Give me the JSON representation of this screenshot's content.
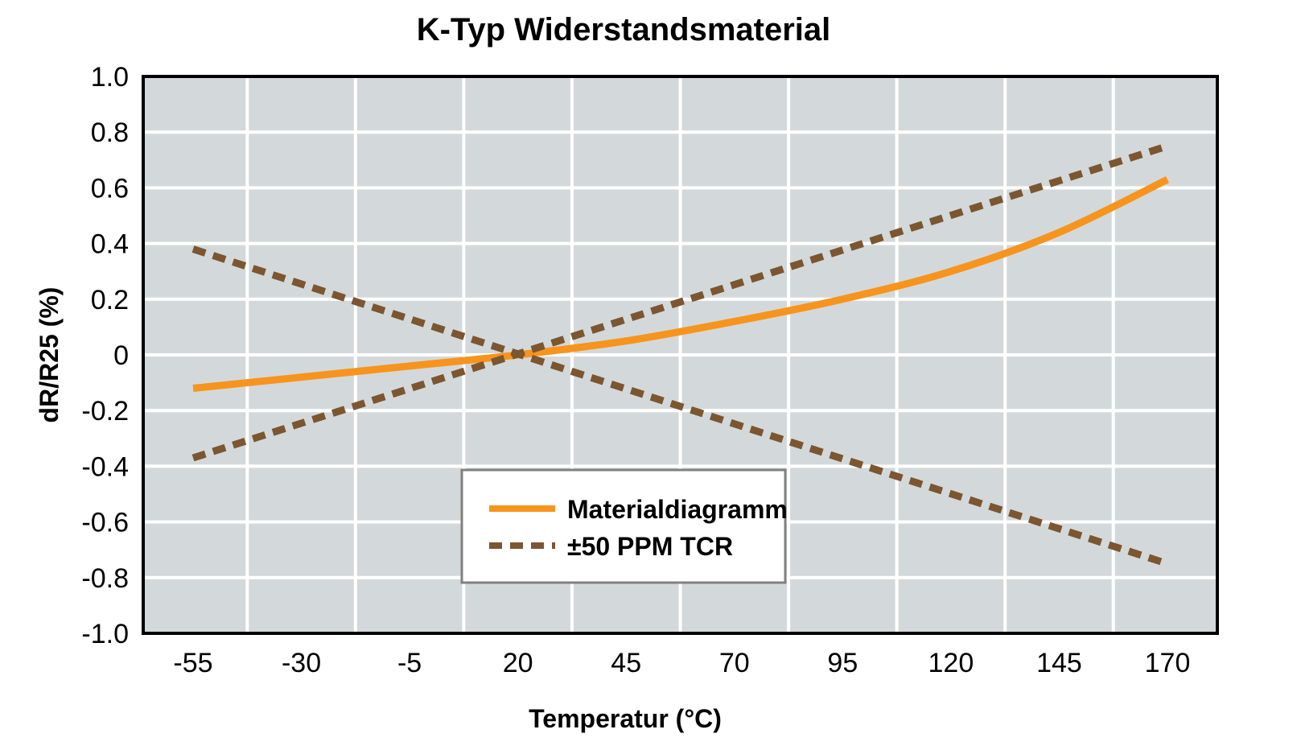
{
  "colors": {
    "plot_background": "#d3d9da",
    "grid": "#ffffff",
    "material_line": "#f7941d",
    "tcr_line": "#7b5631",
    "legend_border": "#808080"
  },
  "chart_data": {
    "type": "line",
    "title": "K-Typ Widerstandsmaterial",
    "xlabel": "Temperatur (°C)",
    "ylabel": "dR/R25 (%)",
    "xlim": [
      -55,
      170
    ],
    "ylim": [
      -1.0,
      1.0
    ],
    "x_ticks": [
      -55,
      -30,
      -5,
      20,
      45,
      70,
      95,
      120,
      145,
      170
    ],
    "x_tick_labels": [
      "-55",
      "-30",
      "-5",
      "20",
      "45",
      "70",
      "95",
      "120",
      "145",
      "170"
    ],
    "y_ticks": [
      1.0,
      0.8,
      0.6,
      0.4,
      0.2,
      0,
      -0.2,
      -0.4,
      -0.6,
      -0.8,
      -1.0
    ],
    "y_tick_labels": [
      "1.0",
      "0.8",
      "0.6",
      "0.4",
      "0.2",
      "0",
      "-0.2",
      "-0.4",
      "-0.6",
      "-0.8",
      "-1.0"
    ],
    "grid": true,
    "legend_position": "bottom-center",
    "series": [
      {
        "name": "Materialdiagramm",
        "style": "solid",
        "x": [
          -55,
          -30,
          -5,
          20,
          45,
          70,
          95,
          120,
          145,
          170
        ],
        "y": [
          -0.12,
          -0.08,
          -0.04,
          0.0,
          0.05,
          0.12,
          0.2,
          0.3,
          0.44,
          0.63
        ]
      },
      {
        "name": "±50 PPM TCR",
        "style": "dashed",
        "x": [
          -55,
          170
        ],
        "y": [
          0.38,
          -0.75
        ]
      },
      {
        "name": "±50 PPM TCR",
        "style": "dashed",
        "x": [
          -55,
          170
        ],
        "y": [
          -0.37,
          0.75
        ]
      }
    ]
  }
}
